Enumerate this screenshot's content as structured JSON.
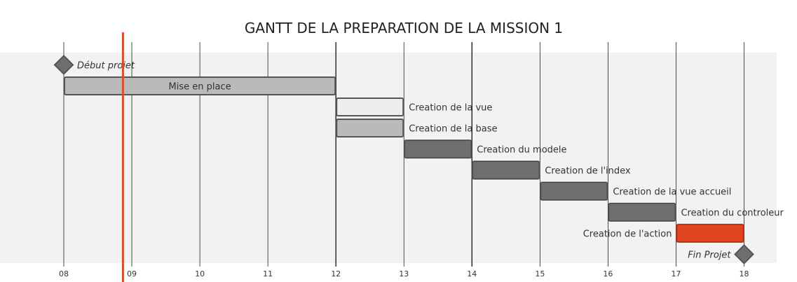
{
  "chart_data": {
    "type": "gantt",
    "title": "GANTT DE LA PREPARATION DE LA MISSION 1",
    "x_ticks": [
      "08",
      "09",
      "10",
      "11",
      "12",
      "13",
      "14",
      "15",
      "16",
      "17",
      "18"
    ],
    "xlim": [
      8,
      18.5
    ],
    "today_marker": 8.87,
    "milestones": [
      {
        "label": "Début projet",
        "x": 8.0,
        "row": 0,
        "label_side": "right"
      },
      {
        "label": "Fin Projet",
        "x": 18.0,
        "row": 9,
        "label_side": "left"
      }
    ],
    "tasks": [
      {
        "label": "Mise en place",
        "start": 8,
        "end": 12,
        "row": 1,
        "style": "light",
        "label_position": "inside"
      },
      {
        "label": "Creation de la vue",
        "start": 12,
        "end": 13,
        "row": 2,
        "style": "outline",
        "label_position": "right"
      },
      {
        "label": "Creation de la base",
        "start": 12,
        "end": 13,
        "row": 3,
        "style": "light",
        "label_position": "right"
      },
      {
        "label": "Creation du modele",
        "start": 13,
        "end": 14,
        "row": 4,
        "style": "dark",
        "label_position": "right"
      },
      {
        "label": "Creation de l'index",
        "start": 14,
        "end": 15,
        "row": 5,
        "style": "dark",
        "label_position": "right"
      },
      {
        "label": "Creation de la vue accueil",
        "start": 15,
        "end": 16,
        "row": 6,
        "style": "dark",
        "label_position": "right"
      },
      {
        "label": "Creation du controleur",
        "start": 16,
        "end": 17,
        "row": 7,
        "style": "dark",
        "label_position": "right"
      },
      {
        "label": "Creation de l'action",
        "start": 17,
        "end": 18,
        "row": 8,
        "style": "critical",
        "label_position": "left"
      }
    ],
    "colors": {
      "background_band": "#f2f2f2",
      "grid": "#222222",
      "light_fill": "#bababa",
      "outline_fill": "#eeeeee",
      "dark_fill": "#6f6f6f",
      "border": "#555555",
      "critical_fill": "#e04520",
      "critical_border": "#c03010",
      "today_line": "#d9502f",
      "milestone_fill": "#6f6f6f"
    }
  }
}
